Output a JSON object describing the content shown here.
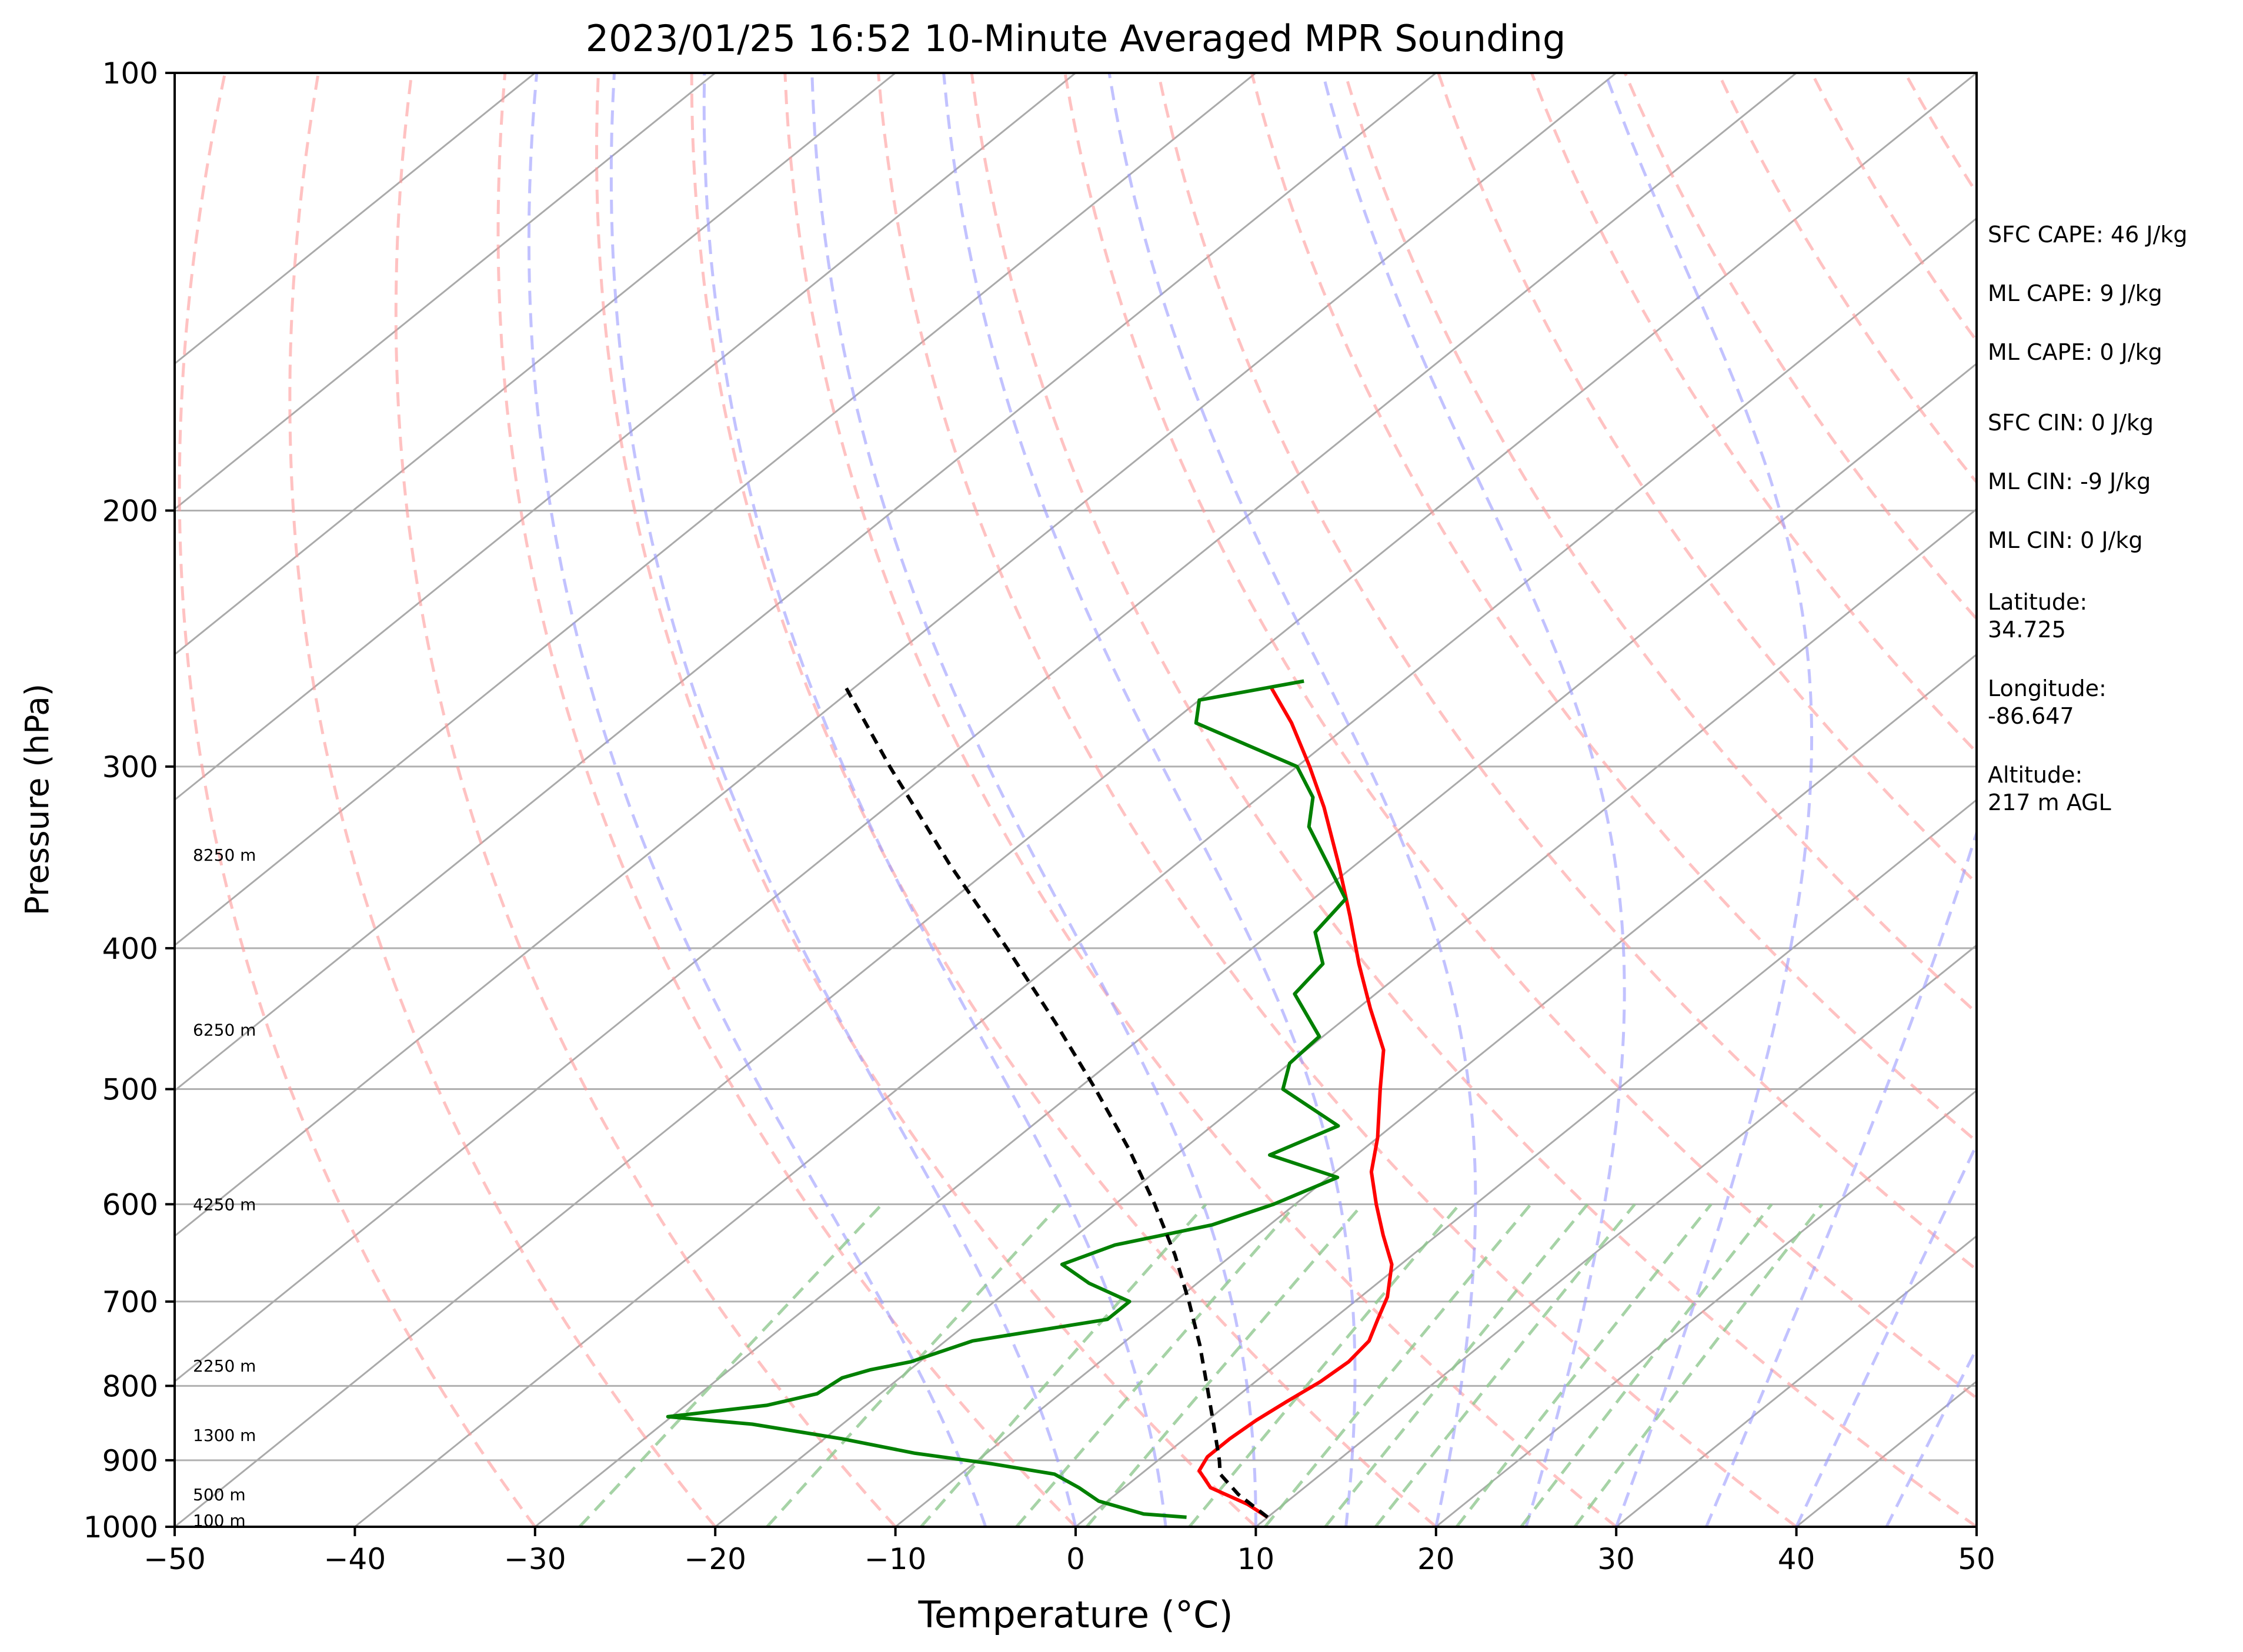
{
  "chart_data": {
    "type": "line",
    "subtype": "skew-T log-p sounding",
    "title": "2023/01/25 16:52 10-Minute Averaged MPR Sounding",
    "xlabel": "Temperature (°C)",
    "ylabel": "Pressure (hPa)",
    "xlim": [
      -50,
      50
    ],
    "ylim": [
      1000,
      100
    ],
    "y_scale": "log",
    "x_ticks": [
      "−50",
      "−40",
      "−30",
      "−20",
      "−10",
      "0",
      "10",
      "20",
      "30",
      "40",
      "50"
    ],
    "y_ticks": [
      "100",
      "200",
      "300",
      "400",
      "500",
      "600",
      "700",
      "800",
      "900",
      "1000"
    ],
    "height_labels": [
      {
        "text": "100 m",
        "p": 990
      },
      {
        "text": "500 m",
        "p": 950
      },
      {
        "text": "1300 m",
        "p": 865
      },
      {
        "text": "2250 m",
        "p": 775
      },
      {
        "text": "4250 m",
        "p": 600
      },
      {
        "text": "6250 m",
        "p": 455
      },
      {
        "text": "8250 m",
        "p": 345
      }
    ],
    "annotations": [
      "SFC CAPE: 46 J/kg",
      "ML CAPE: 9 J/kg",
      "ML CAPE: 0 J/kg",
      "SFC CIN: 0 J/kg",
      "ML CIN: -9 J/kg",
      "ML CIN: 0 J/kg",
      "Latitude:\n34.725",
      "Longitude:\n-86.647",
      "Altitude:\n217 m AGL"
    ],
    "series": [
      {
        "role": "temperature",
        "color": "#ff0000",
        "points": [
          {
            "p": 985,
            "t": 10.0
          },
          {
            "p": 965,
            "t": 8.0
          },
          {
            "p": 940,
            "t": 4.8
          },
          {
            "p": 915,
            "t": 3.0
          },
          {
            "p": 895,
            "t": 2.5
          },
          {
            "p": 870,
            "t": 2.5
          },
          {
            "p": 845,
            "t": 2.7
          },
          {
            "p": 820,
            "t": 3.1
          },
          {
            "p": 795,
            "t": 3.6
          },
          {
            "p": 770,
            "t": 3.8
          },
          {
            "p": 745,
            "t": 3.5
          },
          {
            "p": 720,
            "t": 2.5
          },
          {
            "p": 695,
            "t": 1.5
          },
          {
            "p": 660,
            "t": -0.5
          },
          {
            "p": 630,
            "t": -3.0
          },
          {
            "p": 600,
            "t": -5.5
          },
          {
            "p": 570,
            "t": -8.0
          },
          {
            "p": 540,
            "t": -10.0
          },
          {
            "p": 500,
            "t": -13.2
          },
          {
            "p": 470,
            "t": -15.7
          },
          {
            "p": 440,
            "t": -19.3
          },
          {
            "p": 410,
            "t": -23.0
          },
          {
            "p": 380,
            "t": -26.8
          },
          {
            "p": 350,
            "t": -31.0
          },
          {
            "p": 320,
            "t": -35.7
          },
          {
            "p": 300,
            "t": -39.3
          },
          {
            "p": 280,
            "t": -43.3
          },
          {
            "p": 265,
            "t": -46.8
          }
        ]
      },
      {
        "role": "dewpoint",
        "color": "#008000",
        "points": [
          {
            "p": 985,
            "t": 5.5
          },
          {
            "p": 980,
            "t": 2.9
          },
          {
            "p": 960,
            "t": -0.5
          },
          {
            "p": 940,
            "t": -2.5
          },
          {
            "p": 920,
            "t": -4.8
          },
          {
            "p": 905,
            "t": -9.0
          },
          {
            "p": 890,
            "t": -14.0
          },
          {
            "p": 870,
            "t": -19.0
          },
          {
            "p": 850,
            "t": -25.0
          },
          {
            "p": 840,
            "t": -30.2
          },
          {
            "p": 825,
            "t": -25.5
          },
          {
            "p": 810,
            "t": -23.5
          },
          {
            "p": 790,
            "t": -23.2
          },
          {
            "p": 780,
            "t": -22.2
          },
          {
            "p": 770,
            "t": -20.5
          },
          {
            "p": 745,
            "t": -18.5
          },
          {
            "p": 720,
            "t": -12.5
          },
          {
            "p": 700,
            "t": -12.5
          },
          {
            "p": 680,
            "t": -16.0
          },
          {
            "p": 660,
            "t": -18.8
          },
          {
            "p": 640,
            "t": -17.2
          },
          {
            "p": 620,
            "t": -13.2
          },
          {
            "p": 600,
            "t": -11.2
          },
          {
            "p": 575,
            "t": -9.5
          },
          {
            "p": 555,
            "t": -14.8
          },
          {
            "p": 530,
            "t": -13.0
          },
          {
            "p": 500,
            "t": -18.6
          },
          {
            "p": 480,
            "t": -20.0
          },
          {
            "p": 460,
            "t": -20.2
          },
          {
            "p": 430,
            "t": -24.5
          },
          {
            "p": 410,
            "t": -25.0
          },
          {
            "p": 390,
            "t": -27.6
          },
          {
            "p": 370,
            "t": -28.2
          },
          {
            "p": 350,
            "t": -31.6
          },
          {
            "p": 330,
            "t": -35.2
          },
          {
            "p": 315,
            "t": -37.0
          },
          {
            "p": 300,
            "t": -40.0
          },
          {
            "p": 280,
            "t": -48.6
          },
          {
            "p": 270,
            "t": -50.0
          },
          {
            "p": 262,
            "t": -45.5
          }
        ]
      },
      {
        "role": "parcel profile",
        "color": "#000000",
        "dashed": true,
        "points": [
          {
            "p": 985,
            "t": 10.0
          },
          {
            "p": 950,
            "t": 6.8
          },
          {
            "p": 920,
            "t": 4.4
          },
          {
            "p": 900,
            "t": 3.4
          },
          {
            "p": 850,
            "t": 0.6
          },
          {
            "p": 800,
            "t": -2.4
          },
          {
            "p": 750,
            "t": -5.6
          },
          {
            "p": 700,
            "t": -9.2
          },
          {
            "p": 650,
            "t": -13.2
          },
          {
            "p": 600,
            "t": -17.8
          },
          {
            "p": 550,
            "t": -23.0
          },
          {
            "p": 500,
            "t": -29.0
          },
          {
            "p": 450,
            "t": -35.8
          },
          {
            "p": 400,
            "t": -43.6
          },
          {
            "p": 350,
            "t": -52.6
          },
          {
            "p": 300,
            "t": -62.6
          },
          {
            "p": 265,
            "t": -70.4
          }
        ]
      }
    ],
    "reference_lines": {
      "isotherms": {
        "color": "#aaaaaa",
        "from": -130,
        "to": 50,
        "step": 10
      },
      "dry_adiabats": {
        "color": "#ff9999",
        "theta_c_from": -30,
        "theta_c_to": 200,
        "step": 10
      },
      "moist_adiabats": {
        "color": "#9999ff",
        "surface_t_from": -5,
        "surface_t_to": 45,
        "step": 5
      },
      "mixing_ratio": {
        "color": "#90c890",
        "values_gkg": [
          0.4,
          1,
          2,
          3,
          4,
          6,
          8,
          10,
          12,
          16,
          20,
          24
        ]
      },
      "grid": true
    }
  }
}
